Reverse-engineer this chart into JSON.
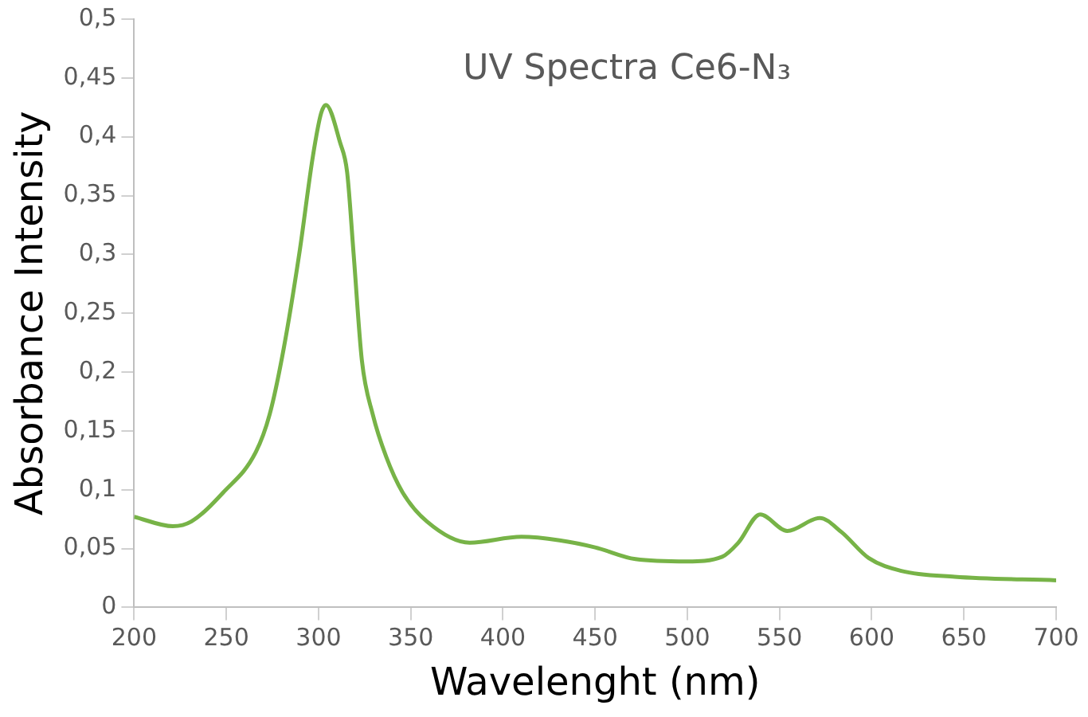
{
  "chart_data": {
    "type": "line",
    "title": "UV Spectra Ce6-N₃",
    "xlabel": "Wavelenght (nm)",
    "ylabel": "Absorbance Intensity",
    "x": [
      200,
      221,
      231,
      248.5,
      266,
      273.5,
      281,
      289.6,
      297,
      301.4,
      304,
      311.7,
      315.5,
      319,
      323.5,
      329.4,
      336.7,
      345.5,
      358.8,
      382,
      410,
      430.7,
      450,
      471.9,
      499.8,
      518.9,
      527.7,
      539.5,
      554.2,
      571.8,
      583.6,
      598.3,
      616,
      645,
      700
    ],
    "series": [
      {
        "color": "#77b347",
        "values": [
          0.077,
          0.069,
          0.073,
          0.098,
          0.132,
          0.164,
          0.219,
          0.301,
          0.384,
          0.42,
          0.427,
          0.395,
          0.37,
          0.301,
          0.21,
          0.164,
          0.128,
          0.098,
          0.073,
          0.055,
          0.06,
          0.057,
          0.051,
          0.041,
          0.039,
          0.043,
          0.055,
          0.079,
          0.065,
          0.076,
          0.064,
          0.042,
          0.031,
          0.026,
          0.023
        ]
      }
    ],
    "xlim": [
      200,
      700
    ],
    "xticks": [
      200,
      250,
      300,
      350,
      400,
      450,
      500,
      550,
      600,
      650,
      700
    ],
    "ylim": [
      0,
      0.5
    ],
    "yticks": [
      0,
      {
        "value": 0.05,
        "label": "0,05"
      },
      {
        "value": 0.1,
        "label": "0,1"
      },
      {
        "value": 0.15,
        "label": "0,15"
      },
      {
        "value": 0.2,
        "label": "0,2"
      },
      {
        "value": 0.25,
        "label": "0,25"
      },
      {
        "value": 0.3,
        "label": "0,3"
      },
      {
        "value": 0.35,
        "label": "0,35"
      },
      {
        "value": 0.4,
        "label": "0,4"
      },
      {
        "value": 0.45,
        "label": "0,45"
      },
      {
        "value": 0.5,
        "label": "0,5"
      }
    ],
    "grid": false,
    "legend": false,
    "marker": "none",
    "line_style": "solid"
  }
}
